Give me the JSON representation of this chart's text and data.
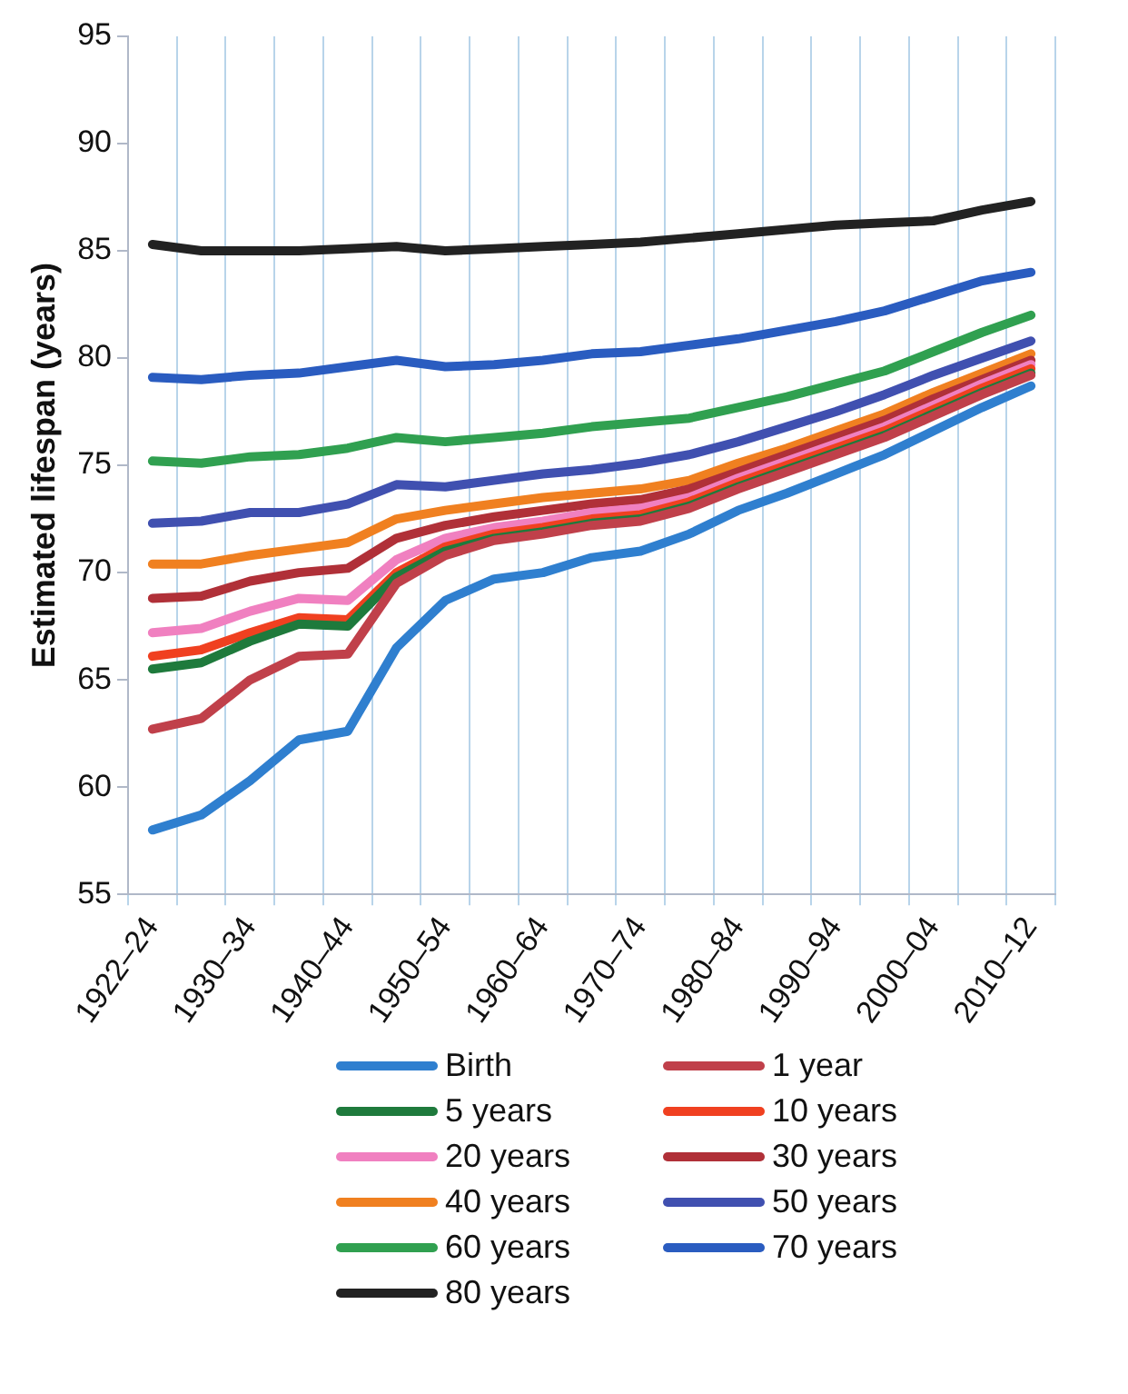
{
  "chart_data": {
    "type": "line",
    "ylabel": "Estimated lifespan (years)",
    "categories": [
      "1922–24",
      null,
      "1930–34",
      null,
      "1940–44",
      null,
      "1950–54",
      null,
      "1960–64",
      null,
      "1970–74",
      null,
      "1980–84",
      null,
      "1990–94",
      null,
      "2000–04",
      null,
      "2010–12"
    ],
    "ylim": [
      55,
      95
    ],
    "yticks": [
      55,
      60,
      65,
      70,
      75,
      80,
      85,
      90,
      95
    ],
    "grid": "x",
    "legend": "bottom",
    "marker": "none",
    "line_style": "solid",
    "series": [
      {
        "name": "Birth",
        "color": "#2f7fcf",
        "values": [
          58,
          58.7,
          60.3,
          62.2,
          62.6,
          66.5,
          68.7,
          69.7,
          70.0,
          70.7,
          71.0,
          71.8,
          72.9,
          73.7,
          74.6,
          75.5,
          76.6,
          77.7,
          78.7
        ]
      },
      {
        "name": "1 year",
        "color": "#c0404a",
        "values": [
          62.7,
          63.2,
          65.0,
          66.1,
          66.2,
          69.5,
          70.8,
          71.5,
          71.8,
          72.2,
          72.4,
          73.0,
          73.9,
          74.7,
          75.5,
          76.3,
          77.3,
          78.3,
          79.2
        ]
      },
      {
        "name": "5 years",
        "color": "#1e7a3c",
        "values": [
          65.5,
          65.8,
          66.8,
          67.6,
          67.5,
          69.8,
          71.0,
          71.6,
          71.9,
          72.3,
          72.5,
          73.1,
          74.0,
          74.8,
          75.6,
          76.4,
          77.4,
          78.4,
          79.3
        ]
      },
      {
        "name": "10 years",
        "color": "#f04020",
        "values": [
          66.1,
          66.4,
          67.2,
          67.9,
          67.8,
          70.0,
          71.2,
          71.8,
          72.1,
          72.5,
          72.7,
          73.3,
          74.2,
          75.0,
          75.8,
          76.6,
          77.6,
          78.6,
          79.5
        ]
      },
      {
        "name": "20 years",
        "color": "#f080c0",
        "values": [
          67.2,
          67.4,
          68.2,
          68.8,
          68.7,
          70.6,
          71.6,
          72.1,
          72.4,
          72.8,
          73.0,
          73.5,
          74.4,
          75.2,
          76.0,
          76.8,
          77.8,
          78.8,
          79.7
        ]
      },
      {
        "name": "30 years",
        "color": "#b03038",
        "values": [
          68.8,
          68.9,
          69.6,
          70.0,
          70.2,
          71.6,
          72.2,
          72.6,
          72.9,
          73.2,
          73.4,
          73.9,
          74.7,
          75.5,
          76.3,
          77.1,
          78.1,
          79.0,
          79.9
        ]
      },
      {
        "name": "40 years",
        "color": "#f08020",
        "values": [
          70.4,
          70.4,
          70.8,
          71.1,
          71.4,
          72.5,
          72.9,
          73.2,
          73.5,
          73.7,
          73.9,
          74.3,
          75.1,
          75.8,
          76.6,
          77.4,
          78.4,
          79.3,
          80.2
        ]
      },
      {
        "name": "50 years",
        "color": "#4050b0",
        "values": [
          72.3,
          72.4,
          72.8,
          72.8,
          73.2,
          74.1,
          74.0,
          74.3,
          74.6,
          74.8,
          75.1,
          75.5,
          76.1,
          76.8,
          77.5,
          78.3,
          79.2,
          80.0,
          80.8
        ]
      },
      {
        "name": "60 years",
        "color": "#30a050",
        "values": [
          75.2,
          75.1,
          75.4,
          75.5,
          75.8,
          76.3,
          76.1,
          76.3,
          76.5,
          76.8,
          77.0,
          77.2,
          77.7,
          78.2,
          78.8,
          79.4,
          80.3,
          81.2,
          82.0
        ]
      },
      {
        "name": "70 years",
        "color": "#2a5cc0",
        "values": [
          79.1,
          79.0,
          79.2,
          79.3,
          79.6,
          79.9,
          79.6,
          79.7,
          79.9,
          80.2,
          80.3,
          80.6,
          80.9,
          81.3,
          81.7,
          82.2,
          82.9,
          83.6,
          84.0
        ]
      },
      {
        "name": "80 years",
        "color": "#222222",
        "values": [
          85.3,
          85.0,
          85.0,
          85.0,
          85.1,
          85.2,
          85.0,
          85.1,
          85.2,
          85.3,
          85.4,
          85.6,
          85.8,
          86.0,
          86.2,
          86.3,
          86.4,
          86.9,
          87.3
        ]
      }
    ]
  }
}
